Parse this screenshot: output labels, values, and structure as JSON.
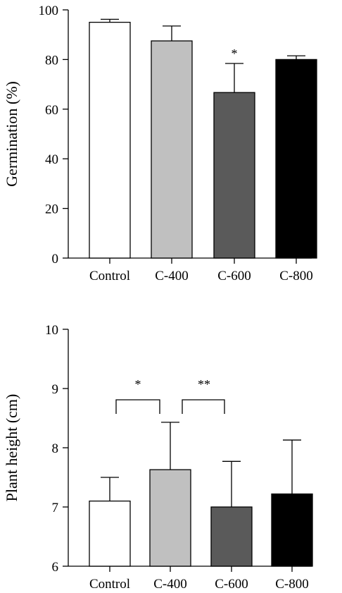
{
  "chart_data": [
    {
      "type": "bar",
      "categories": [
        "Control",
        "C-400",
        "C-600",
        "C-800"
      ],
      "values": [
        95,
        87.5,
        66.7,
        80
      ],
      "errors": [
        1.2,
        6,
        11.7,
        1.5
      ],
      "colors": [
        "#ffffff",
        "#c0c0c0",
        "#5a5a5a",
        "#000000"
      ],
      "title": "",
      "xlabel": "",
      "ylabel": "Germination (%)",
      "ylim": [
        0,
        100
      ],
      "yticks": [
        0,
        20,
        40,
        60,
        80,
        100
      ],
      "annotations": [
        {
          "category": "C-600",
          "text": "*"
        }
      ]
    },
    {
      "type": "bar",
      "categories": [
        "Control",
        "C-400",
        "C-600",
        "C-800"
      ],
      "values": [
        7.1,
        7.63,
        7.0,
        7.22
      ],
      "errors": [
        0.4,
        0.8,
        0.77,
        0.91
      ],
      "colors": [
        "#ffffff",
        "#c0c0c0",
        "#5a5a5a",
        "#000000"
      ],
      "title": "",
      "xlabel": "",
      "ylabel": "Plant height (cm)",
      "ylim": [
        6,
        10
      ],
      "yticks": [
        6,
        7,
        8,
        9,
        10
      ],
      "comparisons": [
        {
          "from": "Control",
          "to": "C-400",
          "text": "*"
        },
        {
          "from": "C-400",
          "to": "C-600",
          "text": "**"
        }
      ]
    }
  ]
}
